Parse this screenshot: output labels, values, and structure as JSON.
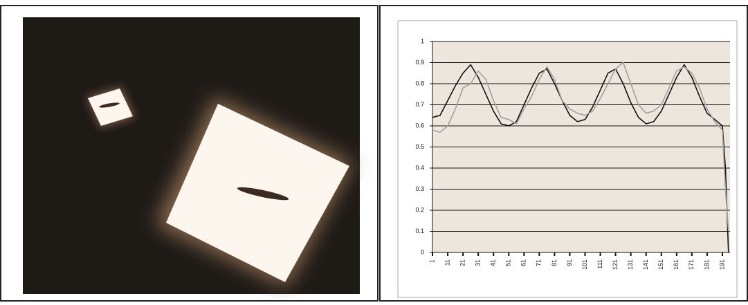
{
  "chart_data": {
    "type": "line",
    "x": [
      1,
      6,
      11,
      16,
      21,
      26,
      31,
      36,
      41,
      46,
      51,
      56,
      61,
      66,
      71,
      76,
      81,
      86,
      91,
      96,
      101,
      106,
      111,
      116,
      121,
      126,
      131,
      136,
      141,
      146,
      151,
      156,
      161,
      166,
      171,
      176,
      181,
      186,
      191,
      193,
      195
    ],
    "series": [
      {
        "color": "#111111",
        "values": [
          0.64,
          0.65,
          0.72,
          0.79,
          0.85,
          0.89,
          0.83,
          0.75,
          0.67,
          0.61,
          0.6,
          0.62,
          0.7,
          0.78,
          0.85,
          0.87,
          0.8,
          0.72,
          0.65,
          0.62,
          0.63,
          0.69,
          0.77,
          0.85,
          0.87,
          0.8,
          0.71,
          0.64,
          0.61,
          0.62,
          0.67,
          0.75,
          0.83,
          0.89,
          0.83,
          0.74,
          0.66,
          0.63,
          0.6,
          0.4,
          0
        ]
      },
      {
        "color": "#a0a0a0",
        "values": [
          0.58,
          0.57,
          0.6,
          0.68,
          0.78,
          0.8,
          0.86,
          0.82,
          0.72,
          0.64,
          0.63,
          0.61,
          0.68,
          0.74,
          0.82,
          0.88,
          0.82,
          0.72,
          0.68,
          0.66,
          0.65,
          0.67,
          0.73,
          0.8,
          0.87,
          0.9,
          0.8,
          0.7,
          0.66,
          0.67,
          0.7,
          0.78,
          0.86,
          0.88,
          0.85,
          0.78,
          0.68,
          0.62,
          0.58,
          0.3,
          0.1
        ]
      }
    ],
    "xlim": [
      1,
      196
    ],
    "xticks": [
      1,
      11,
      21,
      31,
      41,
      51,
      61,
      71,
      81,
      91,
      101,
      111,
      121,
      131,
      141,
      151,
      161,
      171,
      181,
      191
    ],
    "ylim": [
      0,
      1
    ],
    "yticks": [
      0,
      0.1,
      0.2,
      0.3,
      0.4,
      0.5,
      0.6,
      0.7,
      0.8,
      0.9,
      1
    ],
    "grid": true
  }
}
